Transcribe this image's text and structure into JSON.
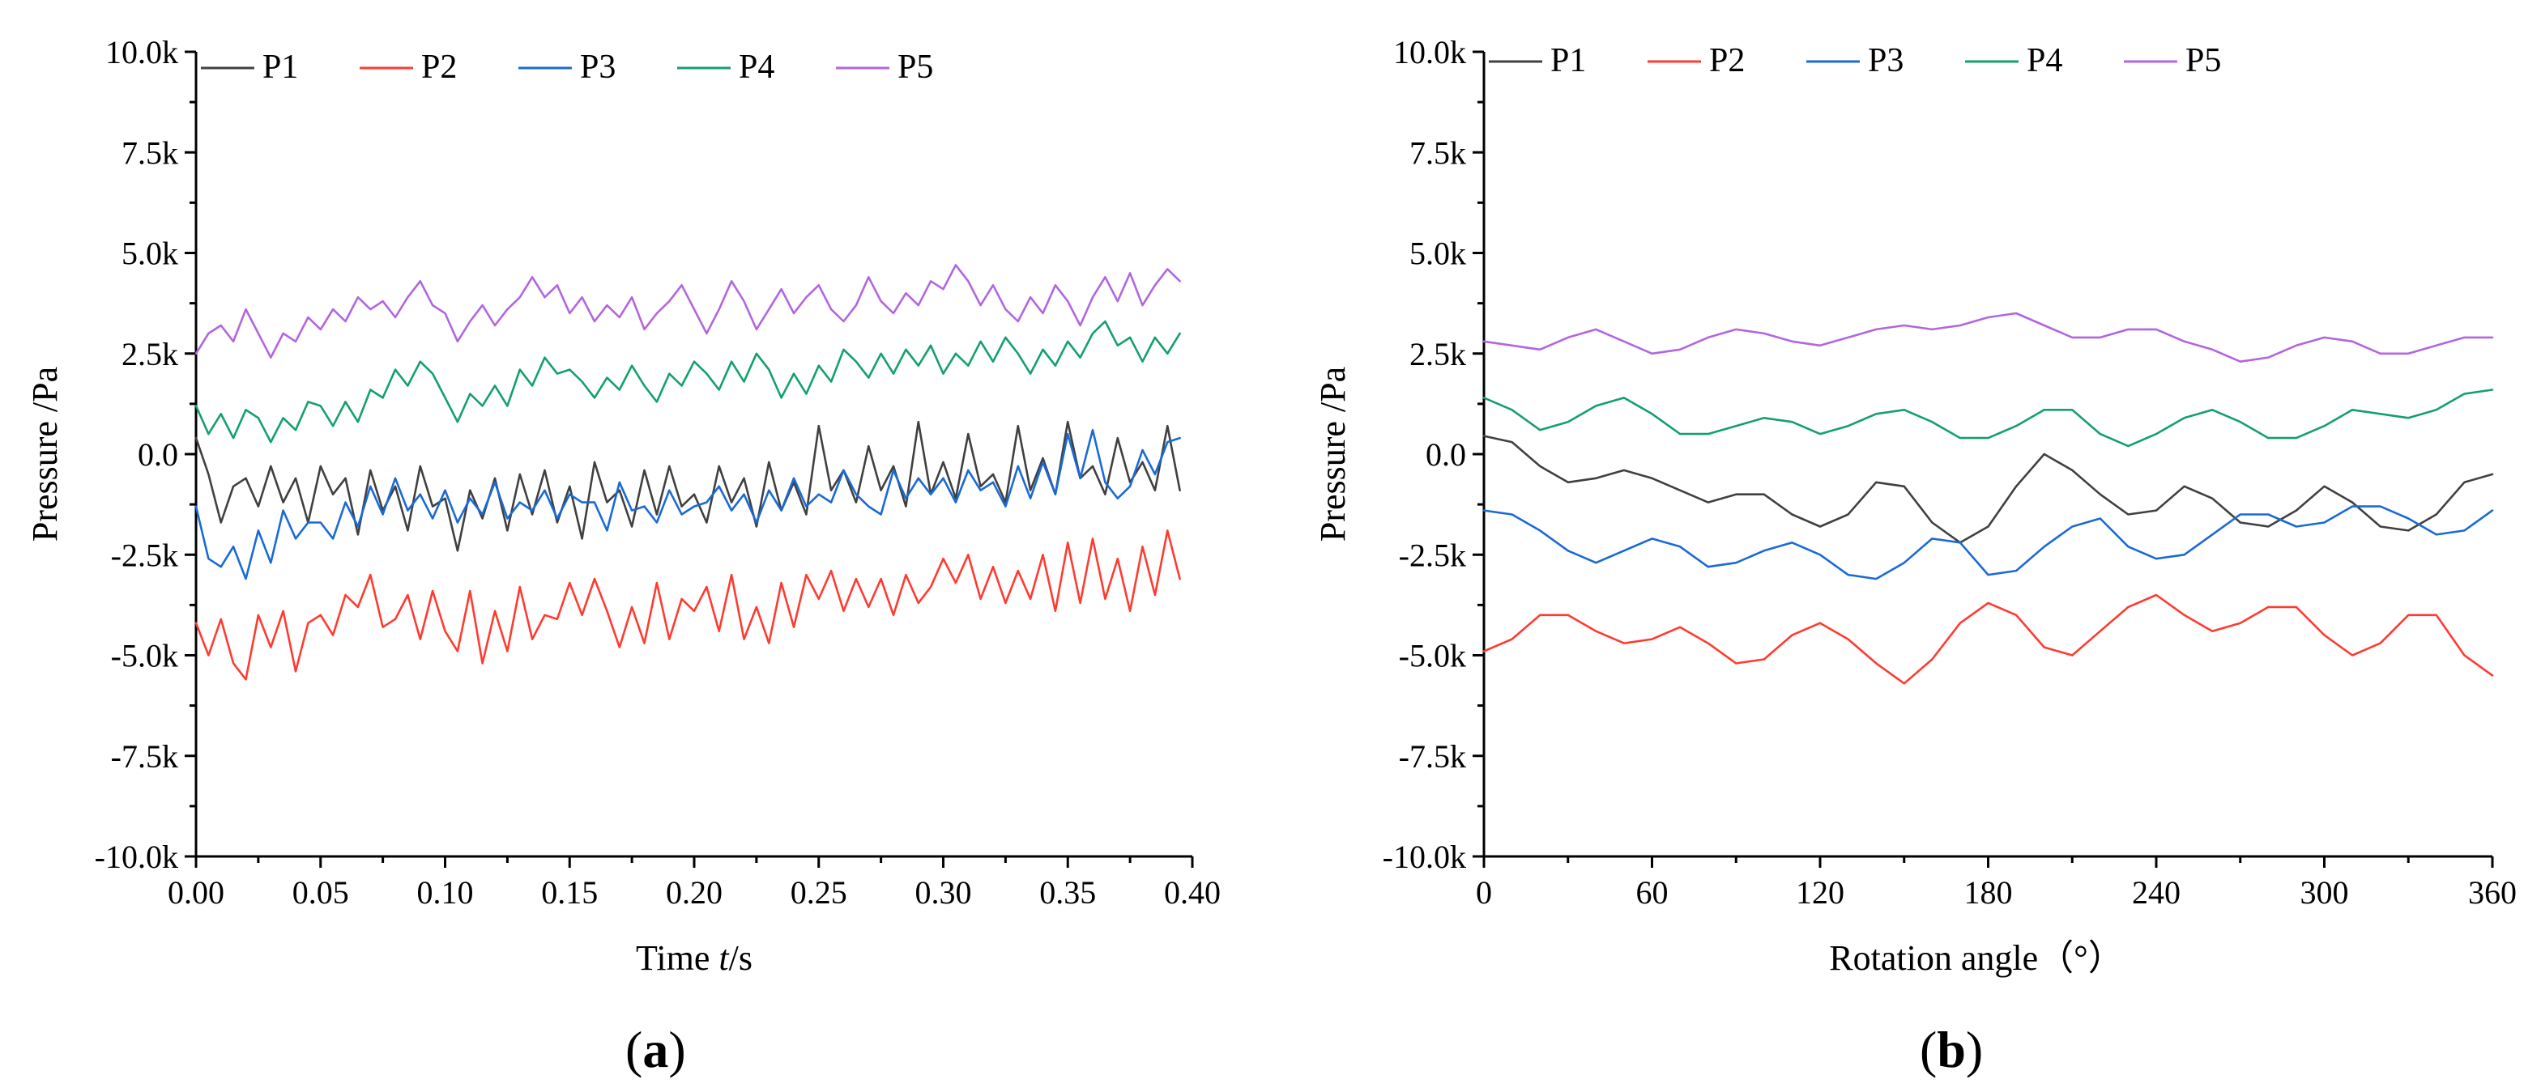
{
  "chart_data": [
    {
      "id": "a",
      "type": "line",
      "panel_label": "a",
      "title": "",
      "xlabel": {
        "prefix": "Time ",
        "italic": "t",
        "suffix": "/s"
      },
      "ylabel": "Pressure /Pa",
      "xlim": [
        0,
        0.4
      ],
      "ylim": [
        -10000,
        10000
      ],
      "xticks": [
        0,
        0.05,
        0.1,
        0.15,
        0.2,
        0.25,
        0.3,
        0.35,
        0.4
      ],
      "xtick_labels": [
        "0.00",
        "0.05",
        "0.10",
        "0.15",
        "0.20",
        "0.25",
        "0.30",
        "0.35",
        "0.40"
      ],
      "yticks": [
        -10000,
        -7500,
        -5000,
        -2500,
        0,
        2500,
        5000,
        7500,
        10000
      ],
      "ytick_labels": [
        "-10.0k",
        "-7.5k",
        "-5.0k",
        "-2.5k",
        "0.0",
        "2.5k",
        "5.0k",
        "7.5k",
        "10.0k"
      ],
      "legend_position": "top",
      "x": [
        0,
        0.005,
        0.01,
        0.015,
        0.02,
        0.025,
        0.03,
        0.035,
        0.04,
        0.045,
        0.05,
        0.055,
        0.06,
        0.065,
        0.07,
        0.075,
        0.08,
        0.085,
        0.09,
        0.095,
        0.1,
        0.105,
        0.11,
        0.115,
        0.12,
        0.125,
        0.13,
        0.135,
        0.14,
        0.145,
        0.15,
        0.155,
        0.16,
        0.165,
        0.17,
        0.175,
        0.18,
        0.185,
        0.19,
        0.195,
        0.2,
        0.205,
        0.21,
        0.215,
        0.22,
        0.225,
        0.23,
        0.235,
        0.24,
        0.245,
        0.25,
        0.255,
        0.26,
        0.265,
        0.27,
        0.275,
        0.28,
        0.285,
        0.29,
        0.295,
        0.3,
        0.305,
        0.31,
        0.315,
        0.32,
        0.325,
        0.33,
        0.335,
        0.34,
        0.345,
        0.35,
        0.355,
        0.36,
        0.365,
        0.37,
        0.375,
        0.38,
        0.385,
        0.39,
        0.395
      ],
      "series": [
        {
          "name": "P1",
          "color": "#404040",
          "values": [
            400,
            -500,
            -1700,
            -800,
            -600,
            -1300,
            -300,
            -1200,
            -600,
            -1700,
            -300,
            -1000,
            -600,
            -2000,
            -400,
            -1400,
            -800,
            -1900,
            -300,
            -1300,
            -1100,
            -2400,
            -900,
            -1600,
            -600,
            -1900,
            -500,
            -1500,
            -400,
            -1700,
            -800,
            -2100,
            -200,
            -1200,
            -900,
            -1800,
            -400,
            -1500,
            -300,
            -1300,
            -1000,
            -1700,
            -300,
            -1200,
            -600,
            -1800,
            -200,
            -1400,
            -700,
            -1500,
            700,
            -900,
            -400,
            -1200,
            200,
            -900,
            -300,
            -1300,
            800,
            -1000,
            -200,
            -1100,
            500,
            -800,
            -500,
            -1200,
            700,
            -900,
            -100,
            -1000,
            800,
            -600,
            -300,
            -1000,
            400,
            -700,
            -200,
            -900,
            700,
            -900
          ]
        },
        {
          "name": "P2",
          "color": "#ff3b30",
          "values": [
            -4200,
            -5000,
            -4100,
            -5200,
            -5600,
            -4000,
            -4800,
            -3900,
            -5400,
            -4200,
            -4000,
            -4500,
            -3500,
            -3800,
            -3000,
            -4300,
            -4100,
            -3500,
            -4600,
            -3400,
            -4400,
            -4900,
            -3400,
            -5200,
            -3900,
            -4900,
            -3300,
            -4600,
            -4000,
            -4100,
            -3200,
            -4000,
            -3100,
            -3900,
            -4800,
            -3800,
            -4700,
            -3200,
            -4600,
            -3600,
            -3900,
            -3300,
            -4400,
            -3000,
            -4600,
            -3800,
            -4700,
            -3200,
            -4300,
            -3000,
            -3600,
            -2900,
            -3900,
            -3100,
            -3800,
            -3100,
            -4000,
            -3000,
            -3700,
            -3300,
            -2600,
            -3200,
            -2500,
            -3600,
            -2800,
            -3700,
            -2900,
            -3600,
            -2500,
            -3900,
            -2200,
            -3700,
            -2100,
            -3600,
            -2600,
            -3900,
            -2300,
            -3500,
            -1900,
            -3100
          ]
        },
        {
          "name": "P3",
          "color": "#1a6ad6",
          "values": [
            -1300,
            -2600,
            -2800,
            -2300,
            -3100,
            -1900,
            -2700,
            -1400,
            -2100,
            -1700,
            -1700,
            -2100,
            -1200,
            -1800,
            -800,
            -1500,
            -600,
            -1400,
            -1000,
            -1600,
            -900,
            -1700,
            -1100,
            -1500,
            -700,
            -1600,
            -1200,
            -1400,
            -900,
            -1600,
            -1000,
            -1200,
            -1200,
            -1900,
            -700,
            -1400,
            -1300,
            -1700,
            -900,
            -1500,
            -1300,
            -1200,
            -800,
            -1400,
            -1000,
            -1700,
            -900,
            -1400,
            -600,
            -1300,
            -1000,
            -1200,
            -400,
            -1000,
            -1300,
            -1500,
            -400,
            -1100,
            -600,
            -1000,
            -600,
            -1200,
            -400,
            -900,
            -700,
            -1300,
            -300,
            -1100,
            -200,
            -1000,
            500,
            -600,
            600,
            -700,
            -1100,
            -800,
            100,
            -500,
            300,
            400
          ]
        },
        {
          "name": "P4",
          "color": "#14a06c",
          "values": [
            1200,
            500,
            1000,
            400,
            1100,
            900,
            300,
            900,
            600,
            1300,
            1200,
            700,
            1300,
            800,
            1600,
            1400,
            2100,
            1700,
            2300,
            2000,
            1400,
            800,
            1500,
            1200,
            1700,
            1200,
            2100,
            1700,
            2400,
            2000,
            2100,
            1800,
            1400,
            1900,
            1600,
            2200,
            1700,
            1300,
            2000,
            1700,
            2300,
            2000,
            1600,
            2300,
            1800,
            2500,
            2100,
            1400,
            2000,
            1500,
            2200,
            1800,
            2600,
            2300,
            1900,
            2500,
            2000,
            2600,
            2200,
            2700,
            2000,
            2500,
            2200,
            2800,
            2300,
            2900,
            2500,
            2000,
            2600,
            2200,
            2800,
            2400,
            3000,
            3300,
            2700,
            2900,
            2300,
            2900,
            2500,
            3000
          ]
        },
        {
          "name": "P5",
          "color": "#b266e0",
          "values": [
            2500,
            3000,
            3200,
            2800,
            3600,
            3000,
            2400,
            3000,
            2800,
            3400,
            3100,
            3600,
            3300,
            3900,
            3600,
            3800,
            3400,
            3900,
            4300,
            3700,
            3500,
            2800,
            3300,
            3700,
            3200,
            3600,
            3900,
            4400,
            3900,
            4200,
            3500,
            3900,
            3300,
            3700,
            3400,
            3900,
            3100,
            3500,
            3800,
            4200,
            3600,
            3000,
            3600,
            4300,
            3800,
            3100,
            3600,
            4100,
            3500,
            3900,
            4200,
            3600,
            3300,
            3700,
            4400,
            3800,
            3500,
            4000,
            3700,
            4300,
            4100,
            4700,
            4300,
            3700,
            4200,
            3600,
            3300,
            3900,
            3500,
            4200,
            3800,
            3200,
            3900,
            4400,
            3800,
            4500,
            3700,
            4200,
            4600,
            4300
          ]
        }
      ]
    },
    {
      "id": "b",
      "type": "line",
      "panel_label": "b",
      "title": "",
      "xlabel": {
        "prefix": "Rotation angle（°）",
        "italic": "",
        "suffix": ""
      },
      "ylabel": "Pressure /Pa",
      "xlim": [
        0,
        360
      ],
      "ylim": [
        -10000,
        10000
      ],
      "xticks": [
        0,
        60,
        120,
        180,
        240,
        300,
        360
      ],
      "xtick_labels": [
        "0",
        "60",
        "120",
        "180",
        "240",
        "300",
        "360"
      ],
      "yticks": [
        -10000,
        -7500,
        -5000,
        -2500,
        0,
        2500,
        5000,
        7500,
        10000
      ],
      "ytick_labels": [
        "-10.0k",
        "-7.5k",
        "-5.0k",
        "-2.5k",
        "0.0",
        "2.5k",
        "5.0k",
        "7.5k",
        "10.0k"
      ],
      "legend_position": "top",
      "x": [
        0,
        10,
        20,
        30,
        40,
        50,
        60,
        70,
        80,
        90,
        100,
        110,
        120,
        130,
        140,
        150,
        160,
        170,
        180,
        190,
        200,
        210,
        220,
        230,
        240,
        250,
        260,
        270,
        280,
        290,
        300,
        310,
        320,
        330,
        340,
        350,
        360
      ],
      "series": [
        {
          "name": "P1",
          "color": "#404040",
          "values": [
            450,
            300,
            -300,
            -700,
            -600,
            -400,
            -600,
            -900,
            -1200,
            -1000,
            -1000,
            -1500,
            -1800,
            -1500,
            -700,
            -800,
            -1700,
            -2200,
            -1800,
            -800,
            0,
            -400,
            -1000,
            -1500,
            -1400,
            -800,
            -1100,
            -1700,
            -1800,
            -1400,
            -800,
            -1200,
            -1800,
            -1900,
            -1500,
            -700,
            -500
          ]
        },
        {
          "name": "P2",
          "color": "#ff3b30",
          "values": [
            -4900,
            -4600,
            -4000,
            -4000,
            -4400,
            -4700,
            -4600,
            -4300,
            -4700,
            -5200,
            -5100,
            -4500,
            -4200,
            -4600,
            -5200,
            -5700,
            -5100,
            -4200,
            -3700,
            -4000,
            -4800,
            -5000,
            -4400,
            -3800,
            -3500,
            -4000,
            -4400,
            -4200,
            -3800,
            -3800,
            -4500,
            -5000,
            -4700,
            -4000,
            -4000,
            -5000,
            -5500
          ]
        },
        {
          "name": "P3",
          "color": "#1a6ad6",
          "values": [
            -1400,
            -1500,
            -1900,
            -2400,
            -2700,
            -2400,
            -2100,
            -2300,
            -2800,
            -2700,
            -2400,
            -2200,
            -2500,
            -3000,
            -3100,
            -2700,
            -2100,
            -2200,
            -3000,
            -2900,
            -2300,
            -1800,
            -1600,
            -2300,
            -2600,
            -2500,
            -2000,
            -1500,
            -1500,
            -1800,
            -1700,
            -1300,
            -1300,
            -1600,
            -2000,
            -1900,
            -1400
          ]
        },
        {
          "name": "P4",
          "color": "#14a06c",
          "values": [
            1400,
            1100,
            600,
            800,
            1200,
            1400,
            1000,
            500,
            500,
            700,
            900,
            800,
            500,
            700,
            1000,
            1100,
            800,
            400,
            400,
            700,
            1100,
            1100,
            500,
            200,
            500,
            900,
            1100,
            800,
            400,
            400,
            700,
            1100,
            1000,
            900,
            1100,
            1500,
            1600
          ]
        },
        {
          "name": "P5",
          "color": "#b266e0",
          "values": [
            2800,
            2700,
            2600,
            2900,
            3100,
            2800,
            2500,
            2600,
            2900,
            3100,
            3000,
            2800,
            2700,
            2900,
            3100,
            3200,
            3100,
            3200,
            3400,
            3500,
            3200,
            2900,
            2900,
            3100,
            3100,
            2800,
            2600,
            2300,
            2400,
            2700,
            2900,
            2800,
            2500,
            2500,
            2700,
            2900,
            2900
          ]
        }
      ]
    }
  ]
}
